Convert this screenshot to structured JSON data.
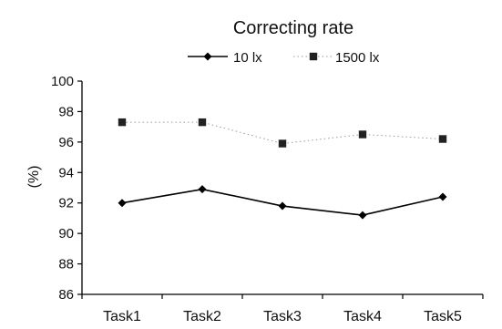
{
  "chart_data": {
    "type": "line",
    "title": "Correcting rate",
    "ylabel": "(%)",
    "xlabel": "",
    "categories": [
      "Task1",
      "Task2",
      "Task3",
      "Task4",
      "Task5"
    ],
    "ylim": [
      86,
      100
    ],
    "yticks": [
      86,
      88,
      90,
      92,
      94,
      96,
      98,
      100
    ],
    "grid": false,
    "legend": "top",
    "series": [
      {
        "name": "10 lx",
        "values": [
          92.0,
          92.9,
          91.8,
          91.2,
          92.4
        ],
        "marker": "diamond",
        "line": "solid",
        "color": "#000000"
      },
      {
        "name": "1500 lx",
        "values": [
          97.3,
          97.3,
          95.9,
          96.5,
          96.2
        ],
        "marker": "square",
        "line": "dotted",
        "color": "#222222"
      }
    ]
  }
}
